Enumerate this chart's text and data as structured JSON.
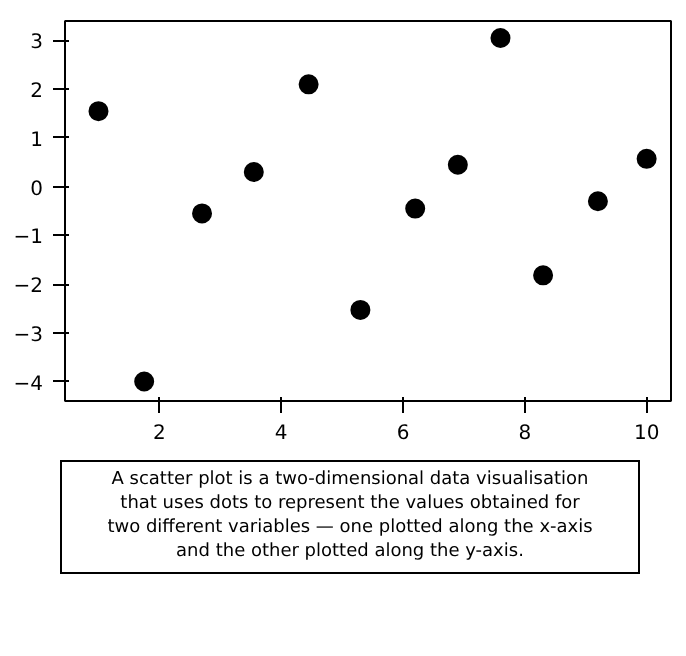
{
  "chart_data": {
    "type": "scatter",
    "x": [
      1,
      1.75,
      2.7,
      3.55,
      4.45,
      5.3,
      6.2,
      6.9,
      7.6,
      8.3,
      9.2,
      10
    ],
    "values": [
      1.55,
      -4,
      -0.55,
      0.3,
      2.1,
      -2.53,
      -0.45,
      0.45,
      3.05,
      -1.82,
      -0.3,
      0.57
    ],
    "color": "#000000",
    "marker": "circle",
    "xlim": [
      0.45,
      10.4
    ],
    "ylim": [
      -4.4,
      3.4
    ],
    "xticks": [
      2,
      4,
      6,
      8,
      10
    ],
    "yticks": [
      -4,
      -3,
      -2,
      -1,
      0,
      1,
      2,
      3
    ],
    "grid": false,
    "annotations": [
      "A scatter plot is a two-dimensional data visualisation\nthat uses dots to represent the values obtained for\ntwo different variables — one plotted along the x-axis\nand the other plotted along the y-axis."
    ]
  }
}
